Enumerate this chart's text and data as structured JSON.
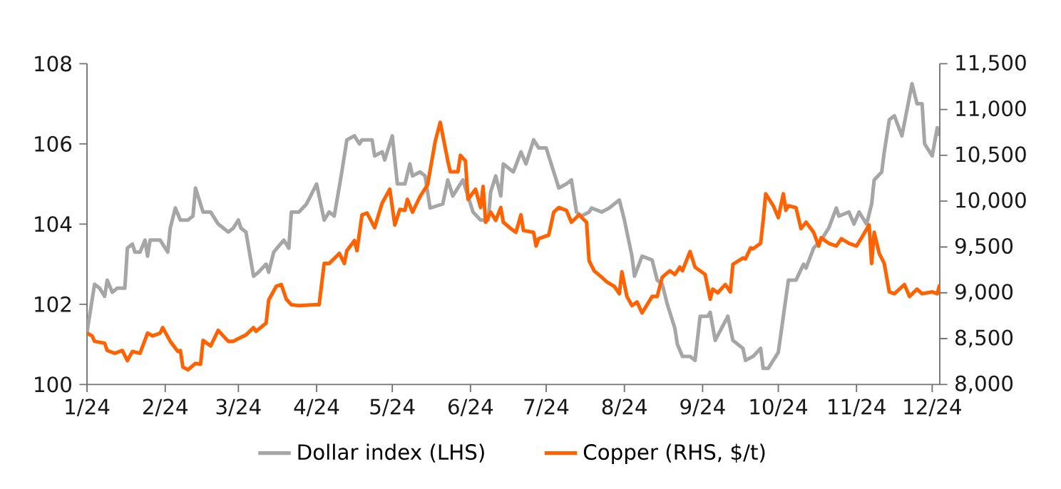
{
  "chart_data": {
    "type": "line",
    "xlim": [
      "2024-01-01",
      "2024-12-04"
    ],
    "xticks": [
      {
        "value": "2024-01-01",
        "label": "1/24"
      },
      {
        "value": "2024-02-01",
        "label": "2/24"
      },
      {
        "value": "2024-03-01",
        "label": "3/24"
      },
      {
        "value": "2024-04-01",
        "label": "4/24"
      },
      {
        "value": "2024-05-01",
        "label": "5/24"
      },
      {
        "value": "2024-06-01",
        "label": "6/24"
      },
      {
        "value": "2024-07-01",
        "label": "7/24"
      },
      {
        "value": "2024-08-01",
        "label": "8/24"
      },
      {
        "value": "2024-09-01",
        "label": "9/24"
      },
      {
        "value": "2024-10-01",
        "label": "10/24"
      },
      {
        "value": "2024-11-01",
        "label": "11/24"
      },
      {
        "value": "2024-12-01",
        "label": "12/24"
      }
    ],
    "ylim": [
      100,
      108
    ],
    "yticks": [
      100,
      102,
      104,
      106,
      108
    ],
    "y2lim": [
      8000,
      11500
    ],
    "y2ticks": [
      {
        "value": 8000,
        "label": "8,000"
      },
      {
        "value": 8500,
        "label": "8,500"
      },
      {
        "value": 9000,
        "label": "9,000"
      },
      {
        "value": 9500,
        "label": "9,500"
      },
      {
        "value": 10000,
        "label": "10,000"
      },
      {
        "value": 10500,
        "label": "10,500"
      },
      {
        "value": 11000,
        "label": "11,000"
      },
      {
        "value": 11500,
        "label": "11,500"
      }
    ],
    "legend": "bottom",
    "grid": false,
    "marker": "none",
    "line_style": "solid",
    "series": [
      {
        "name": "Dollar index (LHS)",
        "color": "#a6a6a6",
        "axis": "y",
        "x": [
          "2024-01-01",
          "2024-01-03",
          "2024-01-04",
          "2024-01-06",
          "2024-01-08",
          "2024-01-09",
          "2024-01-11",
          "2024-01-13",
          "2024-01-16",
          "2024-01-17",
          "2024-01-19",
          "2024-01-20",
          "2024-01-22",
          "2024-01-24",
          "2024-01-25",
          "2024-01-26",
          "2024-01-30",
          "2024-02-02",
          "2024-02-03",
          "2024-02-05",
          "2024-02-07",
          "2024-02-10",
          "2024-02-12",
          "2024-02-13",
          "2024-02-16",
          "2024-02-19",
          "2024-02-22",
          "2024-02-26",
          "2024-02-28",
          "2024-03-01",
          "2024-03-02",
          "2024-03-04",
          "2024-03-07",
          "2024-03-09",
          "2024-03-12",
          "2024-03-13",
          "2024-03-15",
          "2024-03-19",
          "2024-03-21",
          "2024-03-22",
          "2024-03-25",
          "2024-03-28",
          "2024-04-01",
          "2024-04-04",
          "2024-04-06",
          "2024-04-08",
          "2024-04-11",
          "2024-04-13",
          "2024-04-16",
          "2024-04-18",
          "2024-04-19",
          "2024-04-23",
          "2024-04-24",
          "2024-04-27",
          "2024-04-28",
          "2024-05-01",
          "2024-05-03",
          "2024-05-06",
          "2024-05-08",
          "2024-05-09",
          "2024-05-12",
          "2024-05-14",
          "2024-05-16",
          "2024-05-21",
          "2024-05-23",
          "2024-05-25",
          "2024-05-29",
          "2024-06-02",
          "2024-06-05",
          "2024-06-08",
          "2024-06-09",
          "2024-06-11",
          "2024-06-13",
          "2024-06-14",
          "2024-06-18",
          "2024-06-21",
          "2024-06-23",
          "2024-06-26",
          "2024-06-28",
          "2024-07-01",
          "2024-07-04",
          "2024-07-06",
          "2024-07-09",
          "2024-07-11",
          "2024-07-13",
          "2024-07-15",
          "2024-07-18",
          "2024-07-19",
          "2024-07-23",
          "2024-07-26",
          "2024-07-30",
          "2024-08-01",
          "2024-08-04",
          "2024-08-05",
          "2024-08-08",
          "2024-08-12",
          "2024-08-14",
          "2024-08-16",
          "2024-08-18",
          "2024-08-21",
          "2024-08-22",
          "2024-08-24",
          "2024-08-27",
          "2024-08-29",
          "2024-08-31",
          "2024-09-03",
          "2024-09-04",
          "2024-09-06",
          "2024-09-11",
          "2024-09-13",
          "2024-09-17",
          "2024-09-18",
          "2024-09-21",
          "2024-09-24",
          "2024-09-25",
          "2024-09-27",
          "2024-10-01",
          "2024-10-03",
          "2024-10-05",
          "2024-10-08",
          "2024-10-11",
          "2024-10-12",
          "2024-10-15",
          "2024-10-18",
          "2024-10-21",
          "2024-10-24",
          "2024-10-25",
          "2024-10-29",
          "2024-10-31",
          "2024-11-02",
          "2024-11-05",
          "2024-11-07",
          "2024-11-08",
          "2024-11-11",
          "2024-11-12",
          "2024-11-14",
          "2024-11-16",
          "2024-11-19",
          "2024-11-23",
          "2024-11-25",
          "2024-11-27",
          "2024-11-28",
          "2024-12-01",
          "2024-12-03",
          "2024-12-04"
        ],
        "values": [
          101.3,
          102.1,
          102.5,
          102.4,
          102.2,
          102.6,
          102.3,
          102.4,
          102.4,
          103.4,
          103.5,
          103.3,
          103.3,
          103.6,
          103.2,
          103.6,
          103.6,
          103.3,
          103.9,
          104.4,
          104.1,
          104.1,
          104.2,
          104.9,
          104.3,
          104.3,
          104.0,
          103.8,
          103.9,
          104.1,
          103.9,
          103.8,
          102.7,
          102.8,
          103.0,
          102.8,
          103.3,
          103.6,
          103.4,
          104.3,
          104.3,
          104.5,
          105.0,
          104.1,
          104.3,
          104.2,
          105.3,
          106.1,
          106.2,
          106.0,
          106.1,
          106.1,
          105.7,
          105.8,
          105.6,
          106.2,
          105.0,
          105.0,
          105.5,
          105.2,
          105.3,
          105.2,
          104.4,
          104.5,
          105.1,
          104.7,
          105.1,
          104.3,
          104.1,
          104.1,
          104.8,
          105.2,
          104.7,
          105.5,
          105.3,
          105.8,
          105.5,
          106.1,
          105.9,
          105.9,
          105.3,
          104.9,
          105.0,
          105.1,
          104.3,
          104.2,
          104.3,
          104.4,
          104.3,
          104.4,
          104.6,
          104.1,
          103.2,
          102.7,
          103.2,
          103.1,
          102.6,
          102.5,
          102.0,
          101.4,
          101.0,
          100.7,
          100.7,
          100.6,
          101.7,
          101.7,
          101.8,
          101.1,
          101.7,
          101.1,
          100.9,
          100.6,
          100.7,
          100.9,
          100.4,
          100.4,
          100.8,
          101.7,
          102.6,
          102.6,
          103.0,
          102.9,
          103.4,
          103.6,
          103.9,
          104.4,
          104.2,
          104.3,
          104.0,
          104.3,
          104.0,
          104.5,
          105.1,
          105.3,
          105.8,
          106.6,
          106.7,
          106.2,
          107.5,
          107.0,
          107.0,
          106.0,
          105.7,
          106.4,
          106.2
        ]
      },
      {
        "name": "Copper (RHS, $/t)",
        "color": "#ff6200",
        "axis": "y2",
        "x": [
          "2024-01-01",
          "2024-01-03",
          "2024-01-04",
          "2024-01-08",
          "2024-01-09",
          "2024-01-12",
          "2024-01-15",
          "2024-01-17",
          "2024-01-19",
          "2024-01-22",
          "2024-01-25",
          "2024-01-27",
          "2024-01-30",
          "2024-01-31",
          "2024-02-03",
          "2024-02-06",
          "2024-02-07",
          "2024-02-08",
          "2024-02-10",
          "2024-02-13",
          "2024-02-15",
          "2024-02-16",
          "2024-02-19",
          "2024-02-22",
          "2024-02-26",
          "2024-02-28",
          "2024-03-01",
          "2024-03-04",
          "2024-03-07",
          "2024-03-08",
          "2024-03-12",
          "2024-03-13",
          "2024-03-16",
          "2024-03-18",
          "2024-03-20",
          "2024-03-22",
          "2024-03-25",
          "2024-03-31",
          "2024-04-02",
          "2024-04-04",
          "2024-04-06",
          "2024-04-10",
          "2024-04-12",
          "2024-04-13",
          "2024-04-16",
          "2024-04-17",
          "2024-04-19",
          "2024-04-21",
          "2024-04-24",
          "2024-04-27",
          "2024-04-30",
          "2024-05-02",
          "2024-05-04",
          "2024-05-06",
          "2024-05-07",
          "2024-05-09",
          "2024-05-12",
          "2024-05-15",
          "2024-05-18",
          "2024-05-20",
          "2024-05-23",
          "2024-05-24",
          "2024-05-27",
          "2024-05-28",
          "2024-05-30",
          "2024-05-31",
          "2024-06-03",
          "2024-06-05",
          "2024-06-06",
          "2024-06-07",
          "2024-06-09",
          "2024-06-11",
          "2024-06-13",
          "2024-06-14",
          "2024-06-17",
          "2024-06-19",
          "2024-06-21",
          "2024-06-22",
          "2024-06-26",
          "2024-06-27",
          "2024-06-28",
          "2024-07-02",
          "2024-07-04",
          "2024-07-06",
          "2024-07-09",
          "2024-07-11",
          "2024-07-14",
          "2024-07-17",
          "2024-07-18",
          "2024-07-20",
          "2024-07-23",
          "2024-07-25",
          "2024-07-28",
          "2024-07-30",
          "2024-07-31",
          "2024-08-02",
          "2024-08-04",
          "2024-08-06",
          "2024-08-08",
          "2024-08-12",
          "2024-08-14",
          "2024-08-16",
          "2024-08-19",
          "2024-08-21",
          "2024-08-23",
          "2024-08-24",
          "2024-08-27",
          "2024-08-29",
          "2024-09-02",
          "2024-09-04",
          "2024-09-05",
          "2024-09-07",
          "2024-09-10",
          "2024-09-12",
          "2024-09-13",
          "2024-09-17",
          "2024-09-18",
          "2024-09-20",
          "2024-09-21",
          "2024-09-24",
          "2024-09-25",
          "2024-09-26",
          "2024-09-29",
          "2024-10-01",
          "2024-10-03",
          "2024-10-04",
          "2024-10-05",
          "2024-10-08",
          "2024-10-10",
          "2024-10-12",
          "2024-10-15",
          "2024-10-17",
          "2024-10-18",
          "2024-10-21",
          "2024-10-24",
          "2024-10-26",
          "2024-10-29",
          "2024-11-01",
          "2024-11-03",
          "2024-11-06",
          "2024-11-07",
          "2024-11-08",
          "2024-11-10",
          "2024-11-12",
          "2024-11-14",
          "2024-11-16",
          "2024-11-20",
          "2024-11-22",
          "2024-11-25",
          "2024-11-27",
          "2024-12-01",
          "2024-12-03",
          "2024-12-04"
        ],
        "values": [
          8560,
          8530,
          8470,
          8450,
          8370,
          8340,
          8370,
          8260,
          8360,
          8340,
          8560,
          8530,
          8560,
          8620,
          8470,
          8360,
          8370,
          8190,
          8160,
          8230,
          8220,
          8480,
          8420,
          8590,
          8470,
          8470,
          8500,
          8540,
          8620,
          8580,
          8670,
          8920,
          9070,
          9090,
          8930,
          8870,
          8860,
          8870,
          8870,
          9320,
          9320,
          9430,
          9320,
          9460,
          9570,
          9460,
          9850,
          9870,
          9710,
          9980,
          10130,
          9740,
          9910,
          9900,
          10020,
          9880,
          10050,
          10180,
          10650,
          10860,
          10440,
          10320,
          10320,
          10500,
          10440,
          10020,
          10130,
          9930,
          10160,
          9770,
          9880,
          9790,
          9930,
          9770,
          9700,
          9660,
          9850,
          9680,
          9660,
          9510,
          9590,
          9630,
          9880,
          9930,
          9900,
          9770,
          9850,
          9770,
          9350,
          9240,
          9170,
          9120,
          9070,
          8990,
          9230,
          8960,
          8860,
          8900,
          8780,
          8960,
          8960,
          9170,
          9240,
          9200,
          9280,
          9240,
          9450,
          9280,
          9200,
          8930,
          9040,
          9000,
          9090,
          9010,
          9310,
          9380,
          9370,
          9490,
          9480,
          9540,
          9790,
          10080,
          9950,
          9820,
          10080,
          9900,
          9950,
          9930,
          9700,
          9770,
          9660,
          9510,
          9600,
          9540,
          9510,
          9590,
          9540,
          9510,
          9600,
          9740,
          9320,
          9660,
          9430,
          9320,
          9010,
          8990,
          9090,
          8960,
          9040,
          8990,
          9010,
          8990,
          9090
        ]
      }
    ]
  }
}
